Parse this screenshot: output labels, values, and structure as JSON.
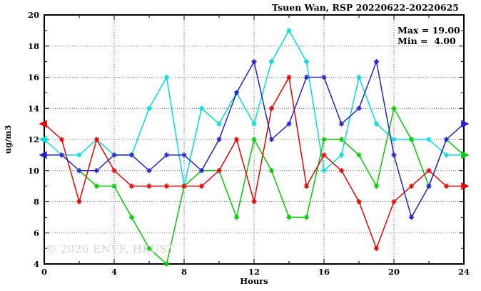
{
  "header": {
    "title": "Tsuen Wan, RSP 20220622-20220625"
  },
  "legend": {
    "max_label": "Max = 19.00",
    "min_label": "Min =  4.00"
  },
  "axes": {
    "x_label": "Hours",
    "y_label": "ug/m3"
  },
  "watermark": "© 2026 ENVF, HKUST",
  "chart_data": {
    "type": "line",
    "title": "Tsuen Wan, RSP 20220622-20220625",
    "xlabel": "Hours",
    "ylabel": "ug/m3",
    "xlim": [
      0,
      24
    ],
    "ylim": [
      4,
      20
    ],
    "grid": true,
    "x_major_ticks": [
      0,
      4,
      8,
      12,
      16,
      20,
      24
    ],
    "x_minor_ticks": [
      2,
      6,
      10,
      14,
      18,
      22
    ],
    "y_major_ticks": [
      4,
      6,
      8,
      10,
      12,
      14,
      16,
      18,
      20
    ],
    "y_minor_ticks": [
      5,
      7,
      9,
      11,
      13,
      15,
      17,
      19
    ],
    "x_gridlines": [
      4,
      8,
      12,
      16,
      20
    ],
    "y_gridlines": [
      6,
      8,
      10,
      12,
      14,
      16,
      18
    ],
    "x": [
      0,
      1,
      2,
      3,
      4,
      5,
      6,
      7,
      8,
      9,
      10,
      11,
      12,
      13,
      14,
      15,
      16,
      17,
      18,
      19,
      20,
      21,
      22,
      23,
      24
    ],
    "series": [
      {
        "name": "cyan",
        "color": "#00dde0",
        "values": [
          12,
          11,
          11,
          12,
          11,
          11,
          14,
          16,
          9,
          14,
          13,
          15,
          13,
          17,
          19,
          17,
          10,
          11,
          16,
          13,
          12,
          12,
          12,
          11,
          11
        ]
      },
      {
        "name": "green",
        "color": "#00cc00",
        "values": [
          null,
          null,
          10,
          9,
          9,
          7,
          5,
          4,
          9,
          10,
          10,
          7,
          12,
          10,
          7,
          7,
          12,
          12,
          11,
          9,
          14,
          12,
          9,
          12,
          11
        ]
      },
      {
        "name": "red",
        "color": "#ee0000",
        "values": [
          13,
          12,
          8,
          12,
          10,
          9,
          9,
          9,
          9,
          9,
          10,
          12,
          8,
          14,
          16,
          9,
          11,
          10,
          8,
          5,
          8,
          9,
          10,
          9,
          9
        ]
      },
      {
        "name": "blue",
        "color": "#2222d5",
        "values": [
          11,
          11,
          10,
          10,
          11,
          11,
          10,
          11,
          11,
          10,
          12,
          15,
          17,
          12,
          13,
          16,
          16,
          13,
          14,
          17,
          11,
          7,
          9,
          12,
          13
        ]
      }
    ],
    "stats": {
      "max": 19.0,
      "min": 4.0
    },
    "legend_position": "top-right-inside",
    "frame_color": "#000000",
    "grid_color": "#666666"
  }
}
